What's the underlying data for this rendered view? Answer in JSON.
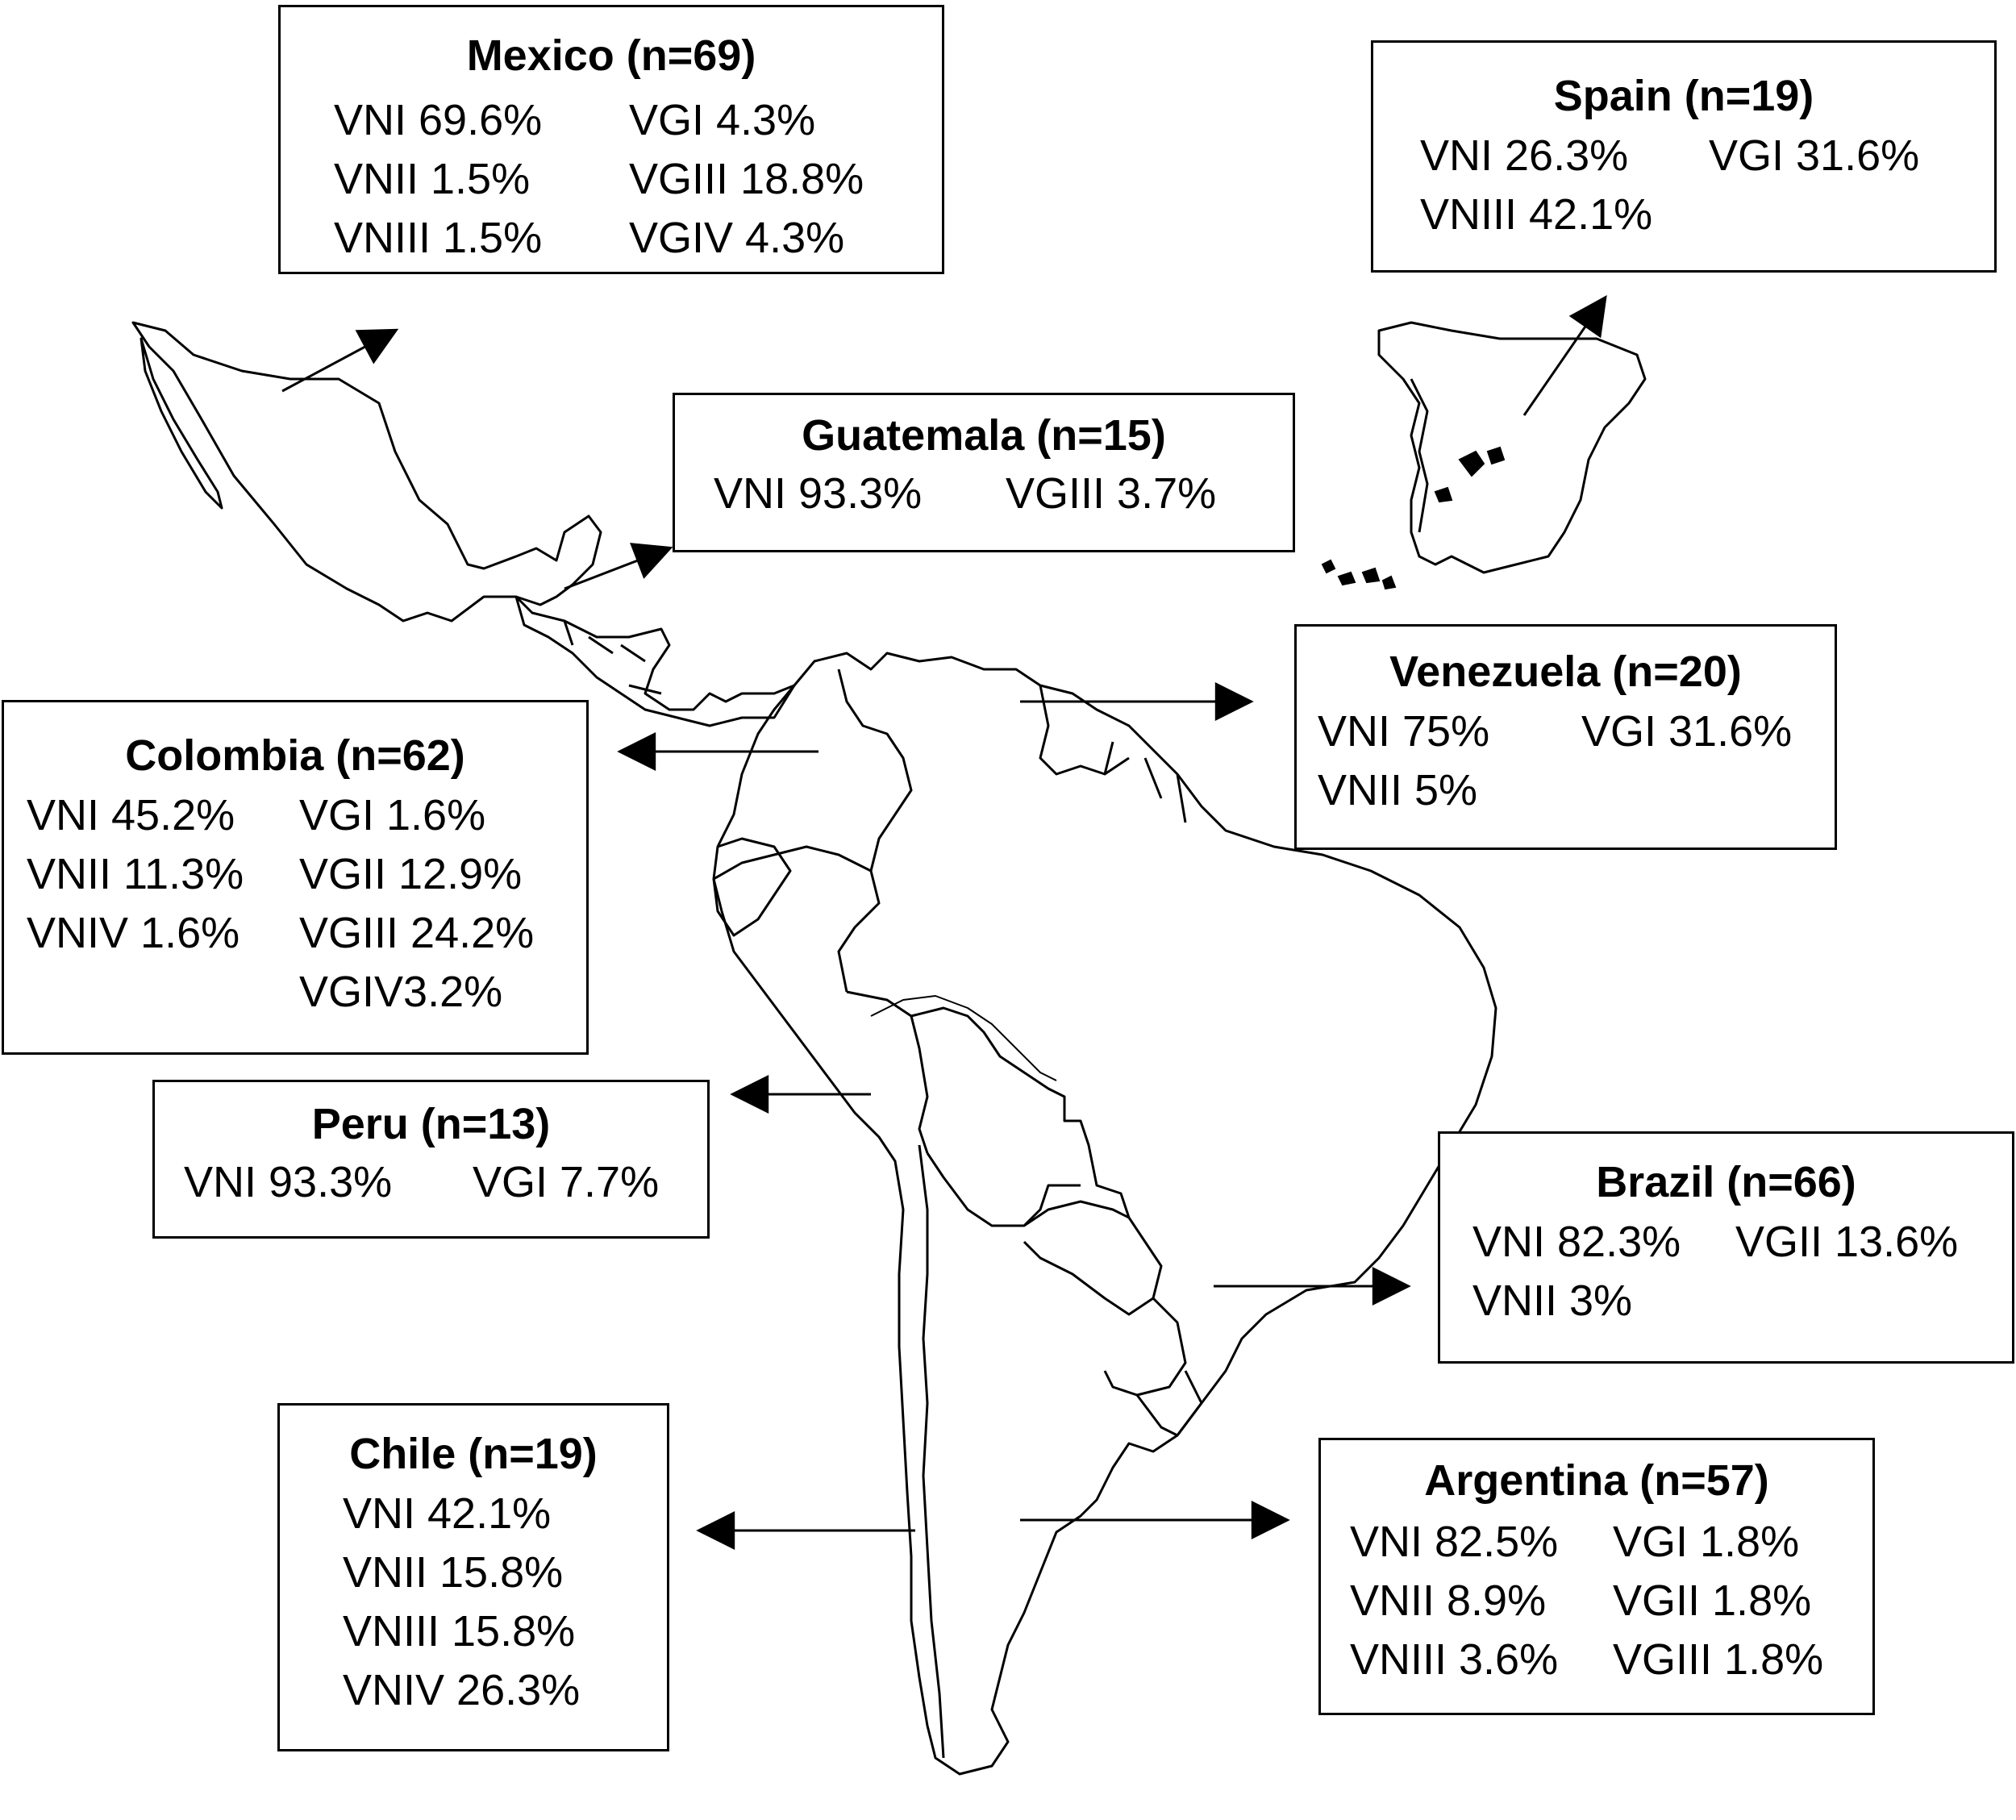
{
  "map": {
    "colors": {
      "ink": "#000000",
      "background": "#ffffff"
    },
    "countries": [
      {
        "key": "mexico",
        "title": "Mexico (n=69)",
        "col1": [
          "VNI 69.6%",
          "VNII 1.5%",
          "VNIII 1.5%"
        ],
        "col2": [
          "VGI 4.3%",
          "VGIII 18.8%",
          "VGIV 4.3%"
        ]
      },
      {
        "key": "spain",
        "title": "Spain (n=19)",
        "col1": [
          "VNI 26.3%",
          "VNIII 42.1%"
        ],
        "col2": [
          "VGI 31.6%"
        ]
      },
      {
        "key": "guatemala",
        "title": "Guatemala (n=15)",
        "col1": [
          "VNI 93.3%"
        ],
        "col2": [
          "VGIII 3.7%"
        ]
      },
      {
        "key": "venezuela",
        "title": "Venezuela (n=20)",
        "col1": [
          "VNI 75%",
          "VNII 5%"
        ],
        "col2": [
          "VGI 31.6%"
        ]
      },
      {
        "key": "colombia",
        "title": "Colombia (n=62)",
        "col1": [
          "VNI 45.2%",
          "VNII 11.3%",
          "VNIV 1.6%"
        ],
        "col2": [
          "VGI 1.6%",
          "VGII 12.9%",
          "VGIII 24.2%",
          "VGIV3.2%"
        ]
      },
      {
        "key": "peru",
        "title": "Peru (n=13)",
        "col1": [
          "VNI 93.3%"
        ],
        "col2": [
          "VGI 7.7%"
        ]
      },
      {
        "key": "brazil",
        "title": "Brazil (n=66)",
        "col1": [
          "VNI 82.3%",
          "VNII 3%"
        ],
        "col2": [
          "VGII 13.6%"
        ]
      },
      {
        "key": "chile",
        "title": "Chile (n=19)",
        "col1": [
          "VNI 42.1%",
          "VNII 15.8%",
          "VNIII 15.8%",
          "VNIV 26.3%"
        ],
        "col2": []
      },
      {
        "key": "argentina",
        "title": "Argentina (n=57)",
        "col1": [
          "VNI 82.5%",
          "VNII 8.9%",
          "VNIII 3.6%"
        ],
        "col2": [
          "VGI 1.8%",
          "VGII 1.8%",
          "VGIII 1.8%"
        ]
      }
    ]
  }
}
